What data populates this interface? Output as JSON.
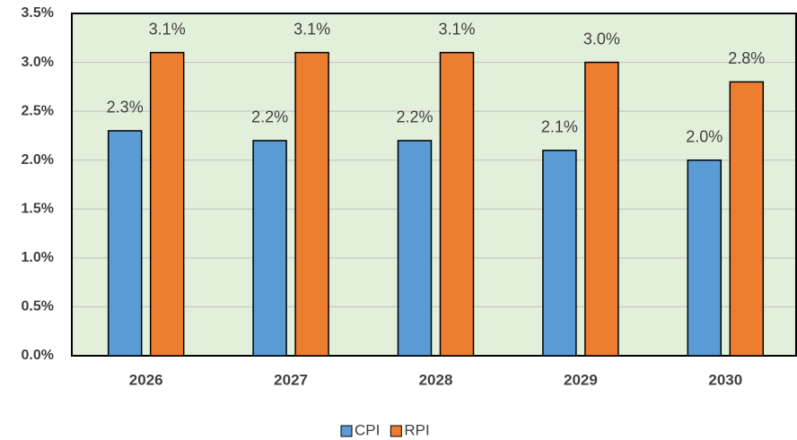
{
  "chart_data": {
    "type": "bar",
    "categories": [
      "2026",
      "2027",
      "2028",
      "2029",
      "2030"
    ],
    "series": [
      {
        "name": "CPI",
        "color": "#5b9bd5",
        "values": [
          2.3,
          2.2,
          2.2,
          2.1,
          2.0
        ],
        "value_labels": [
          "2.3%",
          "2.2%",
          "2.2%",
          "2.1%",
          "2.0%"
        ]
      },
      {
        "name": "RPI",
        "color": "#ed7d31",
        "values": [
          3.1,
          3.1,
          3.1,
          3.0,
          2.8
        ],
        "value_labels": [
          "3.1%",
          "3.1%",
          "3.1%",
          "3.0%",
          "2.8%"
        ]
      }
    ],
    "ylim": [
      0,
      3.5
    ],
    "yticks": [
      {
        "value": 0,
        "label": "0.0%"
      },
      {
        "value": 0.5,
        "label": "0.5%"
      },
      {
        "value": 1,
        "label": "1.0%"
      },
      {
        "value": 1.5,
        "label": "1.5%"
      },
      {
        "value": 2,
        "label": "2.0%"
      },
      {
        "value": 2.5,
        "label": "2.5%"
      },
      {
        "value": 3,
        "label": "3.0%"
      },
      {
        "value": 3.5,
        "label": "3.5%"
      }
    ],
    "grid": true,
    "plot_background": "#e2efda",
    "legend": "bottom"
  }
}
